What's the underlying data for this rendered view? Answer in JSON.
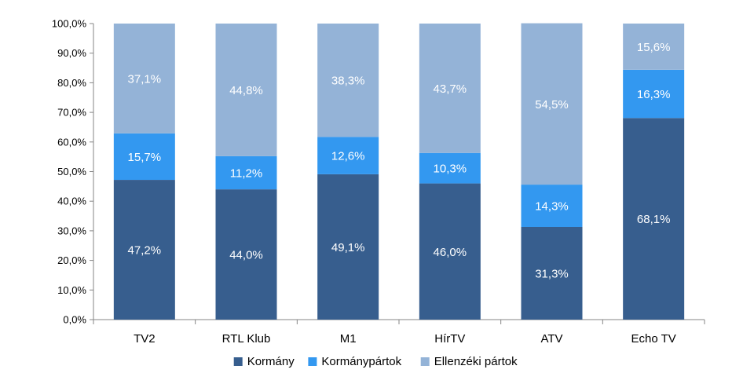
{
  "chart_data": {
    "type": "bar",
    "stacked": true,
    "categories": [
      "TV2",
      "RTL Klub",
      "M1",
      "HírTV",
      "ATV",
      "Echo TV"
    ],
    "series": [
      {
        "name": "Kormány",
        "color": "#375E8E",
        "values": [
          47.2,
          44.0,
          49.1,
          46.0,
          31.3,
          68.1
        ],
        "labels": [
          "47,2%",
          "44,0%",
          "49,1%",
          "46,0%",
          "31,3%",
          "68,1%"
        ]
      },
      {
        "name": "Kormánypártok",
        "color": "#3398F0",
        "values": [
          15.7,
          11.2,
          12.6,
          10.3,
          14.3,
          16.3
        ],
        "labels": [
          "15,7%",
          "11,2%",
          "12,6%",
          "10,3%",
          "14,3%",
          "16,3%"
        ]
      },
      {
        "name": "Ellenzéki pártok",
        "color": "#94B3D7",
        "values": [
          37.1,
          44.8,
          38.3,
          43.7,
          54.5,
          15.6
        ],
        "labels": [
          "37,1%",
          "44,8%",
          "38,3%",
          "43,7%",
          "54,5%",
          "15,6%"
        ]
      }
    ],
    "ylim": [
      0,
      100
    ],
    "yticks": [
      0,
      10,
      20,
      30,
      40,
      50,
      60,
      70,
      80,
      90,
      100
    ],
    "ytick_labels": [
      "0,0%",
      "10,0%",
      "20,0%",
      "30,0%",
      "40,0%",
      "50,0%",
      "60,0%",
      "70,0%",
      "80,0%",
      "90,0%",
      "100,0%"
    ],
    "grid": false,
    "legend_position": "bottom"
  }
}
